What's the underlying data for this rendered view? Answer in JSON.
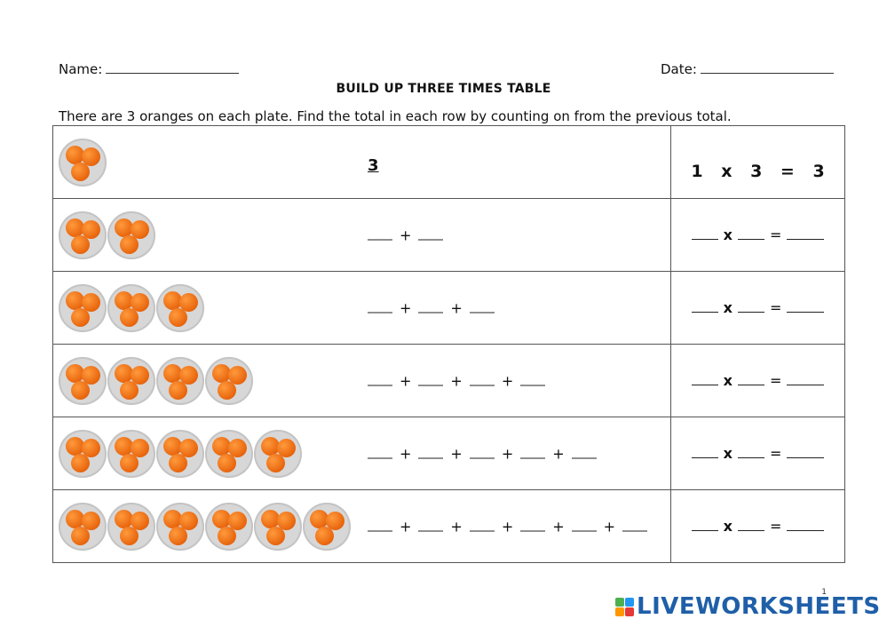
{
  "header": {
    "name_label": "Name:",
    "date_label": "Date:",
    "title": "BUILD UP THREE TIMES TABLE",
    "instructions": "There are 3 oranges on each plate. Find the total in each row by counting on from the previous total."
  },
  "rows": [
    {
      "plates": 1,
      "total": "3",
      "multiplication": "1 x 3 = 3"
    },
    {
      "plates": 2,
      "addends": 2
    },
    {
      "plates": 3,
      "addends": 3
    },
    {
      "plates": 4,
      "addends": 4
    },
    {
      "plates": 5,
      "addends": 5
    },
    {
      "plates": 6,
      "addends": 6
    }
  ],
  "symbols": {
    "plus": "+",
    "times": "x",
    "equals": "="
  },
  "footer": {
    "page_number": "1",
    "brand": "LIVEWORKSHEETS",
    "brand_color": "#1f5fa8",
    "logo_colors": [
      "#4caf50",
      "#2196f3",
      "#ff9800",
      "#e53935"
    ]
  },
  "icons": {
    "plate": "plate-of-oranges-icon"
  }
}
